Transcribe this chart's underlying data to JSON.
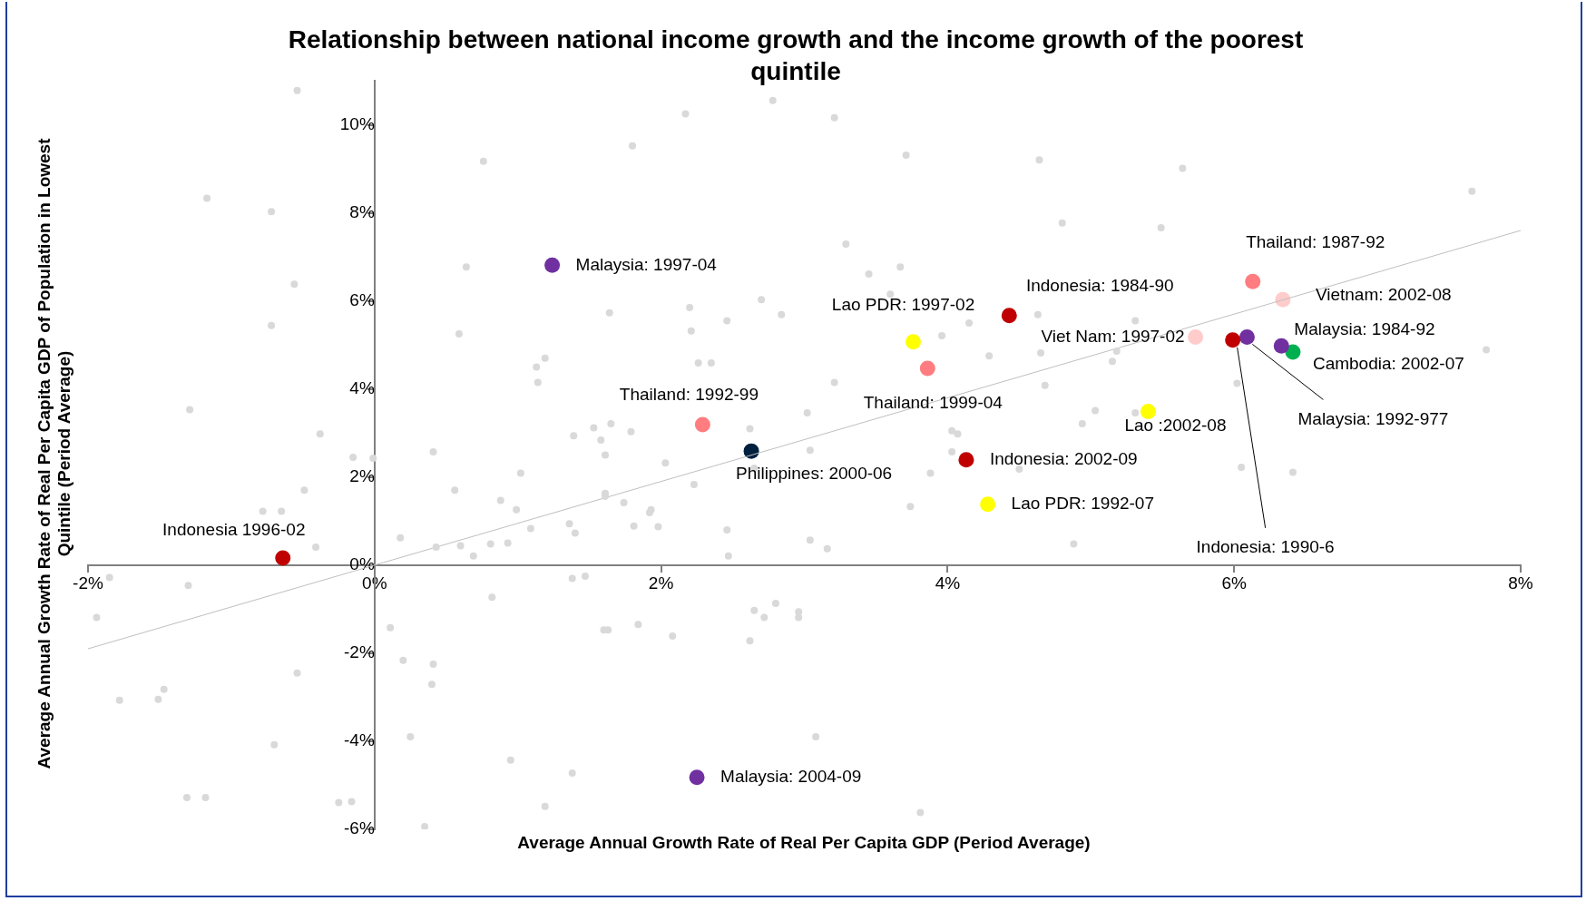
{
  "chart_data": {
    "type": "scatter",
    "title": "Relationship between national income growth and the income growth of the poorest quintile",
    "xlabel": "Average Annual Growth Rate of Real Per Capita GDP (Period Average)",
    "ylabel": "Average Annual Growth Rate of Real Per Capita GDP of Population in Lowest Quintile (Period Average)",
    "xlim": [
      -2,
      8
    ],
    "ylim": [
      -6,
      11
    ],
    "xticks": [
      {
        "value": -2,
        "label": "-2%"
      },
      {
        "value": 0,
        "label": "0%"
      },
      {
        "value": 2,
        "label": "2%"
      },
      {
        "value": 4,
        "label": "4%"
      },
      {
        "value": 6,
        "label": "6%"
      },
      {
        "value": 8,
        "label": "8%"
      }
    ],
    "yticks": [
      {
        "value": -6,
        "label": "-6%"
      },
      {
        "value": -4,
        "label": "-4%"
      },
      {
        "value": -2,
        "label": "-2%"
      },
      {
        "value": 0,
        "label": "0%"
      },
      {
        "value": 2,
        "label": "2%"
      },
      {
        "value": 4,
        "label": "4%"
      },
      {
        "value": 6,
        "label": "6%"
      },
      {
        "value": 8,
        "label": "8%"
      },
      {
        "value": 10,
        "label": "10%"
      }
    ],
    "legend": false,
    "marker": "circle",
    "series": [
      {
        "type": "scatter",
        "color": "#d9d9d9",
        "x": [
          -0.54,
          2.17,
          2.78,
          3.21,
          0.76,
          1.8,
          3.71,
          4.64,
          5.64,
          7.66,
          -1.17,
          -0.72,
          4.8,
          5.49,
          3.29,
          0.64,
          3.45,
          3.67,
          -0.56,
          3.6,
          2.7,
          2.2,
          4.63,
          5.31,
          1.64,
          2.46,
          2.84,
          -0.72,
          0.59,
          2.21,
          3.96,
          4.15,
          5.18,
          4.29,
          4.65,
          5.15,
          1.19,
          1.13,
          1.14,
          2.26,
          2.35,
          4.68,
          6.02,
          7.76,
          3.21,
          -1.29,
          3.02,
          5.03,
          5.31,
          1.65,
          4.94,
          -0.38,
          1.39,
          1.53,
          1.58,
          1.79,
          2.62,
          4.03,
          4.07,
          1.61,
          0.41,
          3.04,
          2.03,
          4.03,
          3.88,
          6.05,
          6.41,
          -0.01,
          -0.15,
          1.02,
          2.65,
          4.5,
          -0.49,
          0.56,
          1.61,
          1.61,
          2.23,
          0.88,
          1.74,
          1.93,
          1.92,
          0.99,
          -0.78,
          -0.65,
          1.81,
          1.98,
          1.36,
          1.09,
          0.18,
          0.43,
          0.6,
          0.69,
          0.81,
          0.93,
          1.4,
          2.46,
          2.47,
          3.04,
          3.16,
          3.74,
          4.88,
          -0.41,
          -1.85,
          -1.94,
          -1.3,
          -1.78,
          -1.51,
          -1.47,
          -1.31,
          -1.18,
          -0.54,
          -0.7,
          -0.25,
          -0.16,
          0.11,
          0.2,
          0.41,
          0.4,
          0.25,
          0.95,
          0.35,
          1.38,
          1.47,
          1.19,
          1.38,
          1.6,
          1.63,
          1.84,
          2.08,
          0.82,
          2.65,
          2.72,
          2.8,
          2.96,
          2.96,
          2.62,
          3.08,
          3.81
        ],
        "values": [
          10.78,
          10.25,
          10.55,
          10.16,
          9.17,
          9.52,
          9.31,
          9.2,
          9.01,
          8.49,
          8.33,
          8.03,
          7.77,
          7.66,
          7.29,
          6.77,
          6.61,
          6.77,
          6.38,
          6.15,
          6.03,
          5.85,
          5.69,
          5.55,
          5.73,
          5.55,
          5.69,
          5.44,
          5.25,
          5.32,
          5.21,
          5.5,
          4.86,
          4.75,
          4.82,
          4.63,
          4.7,
          4.5,
          4.15,
          4.59,
          4.59,
          4.08,
          4.13,
          4.89,
          4.15,
          3.53,
          3.46,
          3.51,
          3.46,
          3.21,
          3.21,
          2.98,
          2.94,
          3.12,
          2.84,
          3.03,
          3.1,
          3.05,
          2.98,
          2.5,
          2.57,
          2.61,
          2.32,
          2.57,
          2.09,
          2.22,
          2.11,
          2.43,
          2.45,
          2.09,
          2.2,
          2.18,
          1.7,
          1.7,
          1.63,
          1.56,
          1.83,
          1.47,
          1.42,
          1.26,
          1.19,
          1.26,
          1.22,
          1.22,
          0.89,
          0.87,
          0.94,
          0.83,
          0.62,
          0.41,
          0.44,
          0.21,
          0.48,
          0.5,
          0.73,
          0.8,
          0.21,
          0.57,
          0.37,
          1.33,
          0.48,
          0.41,
          -0.28,
          -1.19,
          -0.46,
          -3.07,
          -3.05,
          -2.82,
          -5.28,
          -5.28,
          -2.45,
          -4.08,
          -5.39,
          -5.37,
          -1.42,
          -2.16,
          -2.25,
          -2.71,
          -3.9,
          -4.43,
          -5.94,
          -0.3,
          -0.25,
          -5.48,
          -4.72,
          -1.47,
          -1.47,
          -1.35,
          -1.61,
          -0.73,
          -1.03,
          -1.19,
          -0.87,
          -1.06,
          -1.19,
          -1.72,
          -3.9,
          -5.62
        ]
      },
      {
        "type": "line",
        "marker": "none",
        "color": "#bfbfbf",
        "x": [
          -2,
          8
        ],
        "values": [
          -1.9,
          7.6
        ]
      },
      {
        "name": "Malaysia: 1997-04",
        "color": "#7030a0",
        "x": [
          1.24
        ],
        "values": [
          6.81
        ]
      },
      {
        "name": "Indonesia 1996-02",
        "color": "#c00000",
        "x": [
          -0.64
        ],
        "values": [
          0.16
        ]
      },
      {
        "name": "Thailand: 1992-99",
        "color": "#ff7c80",
        "x": [
          2.29
        ],
        "values": [
          3.19
        ]
      },
      {
        "name": "Philippines: 2000-06",
        "color": "#002040",
        "x": [
          2.63
        ],
        "values": [
          2.59
        ]
      },
      {
        "name": "Lao PDR: 1997-02",
        "color": "#ffff00",
        "x": [
          3.76
        ],
        "values": [
          5.07
        ]
      },
      {
        "name": "Thailand: 1999-04",
        "color": "#ff7c80",
        "x": [
          3.86
        ],
        "values": [
          4.47
        ]
      },
      {
        "name": "Indonesia: 1984-90",
        "color": "#c00000",
        "x": [
          4.43
        ],
        "values": [
          5.67
        ]
      },
      {
        "name": "Indonesia: 2002-09",
        "color": "#c00000",
        "x": [
          4.13
        ],
        "values": [
          2.39
        ]
      },
      {
        "name": "Lao PDR: 1992-07",
        "color": "#ffff00",
        "x": [
          4.28
        ],
        "values": [
          1.38
        ]
      },
      {
        "name": "Lao :2002-08",
        "color": "#ffff00",
        "x": [
          5.4
        ],
        "values": [
          3.49
        ]
      },
      {
        "name": "Viet Nam: 1997-02",
        "color": "#ffcccc",
        "x": [
          5.73
        ],
        "values": [
          5.18
        ]
      },
      {
        "name": "Indonesia: 1990-6",
        "color": "#c00000",
        "x": [
          5.99
        ],
        "values": [
          5.11
        ]
      },
      {
        "name": "Malaysia: 1992-977",
        "color": "#7030a0",
        "x": [
          6.09
        ],
        "values": [
          5.18
        ]
      },
      {
        "name": "Thailand: 1987-92",
        "color": "#ff7c80",
        "x": [
          6.13
        ],
        "values": [
          6.44
        ]
      },
      {
        "name": "Vietnam: 2002-08",
        "color": "#ffcccc",
        "x": [
          6.34
        ],
        "values": [
          6.03
        ]
      },
      {
        "name": "Malaysia: 1984-92",
        "color": "#7030a0",
        "x": [
          6.33
        ],
        "values": [
          4.98
        ]
      },
      {
        "name": "Cambodia: 2002-07",
        "color": "#00b050",
        "x": [
          6.41
        ],
        "values": [
          4.84
        ]
      },
      {
        "name": "Malaysia: 2004-09",
        "color": "#7030a0",
        "x": [
          2.25
        ],
        "values": [
          -4.82
        ]
      }
    ]
  }
}
